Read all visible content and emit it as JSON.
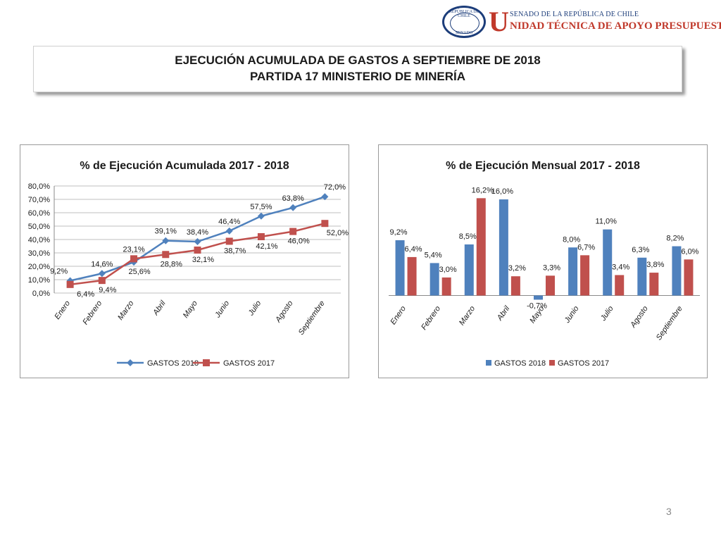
{
  "header": {
    "seal_top": "REPÚBLICA DE CHILE",
    "seal_bottom": "SENADO",
    "logo_letter": "U",
    "org_line1": "SENADO DE LA REPÚBLICA DE CHILE",
    "org_line2": "NIDAD TÉCNICA DE APOYO PRESUPUESTARIO"
  },
  "title": {
    "line1": "EJECUCIÓN ACUMULADA DE GASTOS A SEPTIEMBRE DE 2018",
    "line2": "PARTIDA 17 MINISTERIO DE MINERÍA"
  },
  "page_number": "3",
  "colors": {
    "gastos_2018": "#4f81bd",
    "gastos_2017": "#c0504d",
    "grid": "#bfbfbf"
  },
  "chart_data": [
    {
      "type": "line",
      "title": "% de Ejecución Acumulada 2017 - 2018",
      "categories": [
        "Enero",
        "Febrero",
        "Marzo",
        "Abril",
        "Mayo",
        "Junio",
        "Julio",
        "Agosto",
        "Septiembre"
      ],
      "ylim": [
        0,
        80
      ],
      "yticks": [
        "0,0%",
        "10,0%",
        "20,0%",
        "30,0%",
        "40,0%",
        "50,0%",
        "60,0%",
        "70,0%",
        "80,0%"
      ],
      "grid": true,
      "legend": "bottom",
      "series": [
        {
          "name": "GASTOS 2018",
          "values": [
            9.2,
            14.6,
            23.1,
            39.1,
            38.4,
            46.4,
            57.5,
            63.8,
            72.0
          ],
          "labels": [
            "9,2%",
            "14,6%",
            "23,1%",
            "39,1%",
            "38,4%",
            "46,4%",
            "57,5%",
            "63,8%",
            "72,0%"
          ]
        },
        {
          "name": "GASTOS 2017",
          "values": [
            6.4,
            9.4,
            25.6,
            28.8,
            32.1,
            38.7,
            42.1,
            46.0,
            52.0
          ],
          "labels": [
            "6,4%",
            "9,4%",
            "25,6%",
            "28,8%",
            "32,1%",
            "38,7%",
            "42,1%",
            "46,0%",
            "52,0%"
          ]
        }
      ]
    },
    {
      "type": "bar",
      "title": "% de Ejecución Mensual 2017 - 2018",
      "categories": [
        "Enero",
        "Febrero",
        "Marzo",
        "Abril",
        "Mayo",
        "Junio",
        "Julio",
        "Agosto",
        "Septiembre"
      ],
      "ylim": [
        -1,
        18
      ],
      "grid": false,
      "legend": "bottom",
      "series": [
        {
          "name": "GASTOS 2018",
          "values": [
            9.2,
            5.4,
            8.5,
            16.0,
            -0.7,
            8.0,
            11.0,
            6.3,
            8.2
          ],
          "labels": [
            "9,2%",
            "5,4%",
            "8,5%",
            "16,0%",
            "-0,7%",
            "8,0%",
            "11,0%",
            "6,3%",
            "8,2%"
          ]
        },
        {
          "name": "GASTOS 2017",
          "values": [
            6.4,
            3.0,
            16.2,
            3.2,
            3.3,
            6.7,
            3.4,
            3.8,
            6.0
          ],
          "labels": [
            "6,4%",
            "3,0%",
            "16,2%",
            "3,2%",
            "3,3%",
            "6,7%",
            "3,4%",
            "3,8%",
            "6,0%"
          ]
        }
      ]
    }
  ]
}
